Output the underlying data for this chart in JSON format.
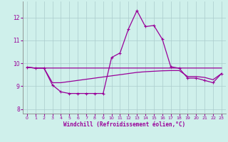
{
  "xlabel": "Windchill (Refroidissement éolien,°C)",
  "background_color": "#cff0eb",
  "line_color": "#990099",
  "grid_color": "#aacccc",
  "xlim": [
    -0.5,
    23.5
  ],
  "ylim": [
    7.8,
    12.7
  ],
  "yticks": [
    8,
    9,
    10,
    11,
    12
  ],
  "xticks": [
    0,
    1,
    2,
    3,
    4,
    5,
    6,
    7,
    8,
    9,
    10,
    11,
    12,
    13,
    14,
    15,
    16,
    17,
    18,
    19,
    20,
    21,
    22,
    23
  ],
  "series1_x": [
    0,
    1,
    2,
    3,
    4,
    5,
    6,
    7,
    8,
    9,
    10,
    11,
    12,
    13,
    14,
    15,
    16,
    17,
    18,
    19,
    20,
    21,
    22,
    23
  ],
  "series1_y": [
    9.82,
    9.79,
    9.79,
    9.79,
    9.79,
    9.79,
    9.79,
    9.79,
    9.79,
    9.79,
    9.79,
    9.79,
    9.79,
    9.79,
    9.79,
    9.79,
    9.79,
    9.79,
    9.79,
    9.79,
    9.79,
    9.79,
    9.79,
    9.79
  ],
  "series2_x": [
    0,
    1,
    2,
    3,
    4,
    5,
    6,
    7,
    8,
    9,
    10,
    11,
    12,
    13,
    14,
    15,
    16,
    17,
    18,
    19,
    20,
    21,
    22,
    23
  ],
  "series2_y": [
    9.82,
    9.79,
    9.79,
    9.05,
    8.75,
    8.68,
    8.68,
    8.68,
    8.68,
    8.68,
    10.25,
    10.45,
    11.5,
    12.3,
    11.6,
    11.65,
    11.05,
    9.85,
    9.78,
    9.35,
    9.35,
    9.25,
    9.15,
    9.55
  ],
  "series3_x": [
    0,
    1,
    2,
    3,
    4,
    5,
    6,
    7,
    8,
    9,
    10,
    11,
    12,
    13,
    14,
    15,
    16,
    17,
    18,
    19,
    20,
    21,
    22,
    23
  ],
  "series3_y": [
    9.82,
    9.79,
    9.79,
    9.15,
    9.15,
    9.2,
    9.25,
    9.3,
    9.35,
    9.4,
    9.45,
    9.5,
    9.55,
    9.6,
    9.63,
    9.65,
    9.67,
    9.68,
    9.68,
    9.42,
    9.42,
    9.38,
    9.28,
    9.55
  ]
}
